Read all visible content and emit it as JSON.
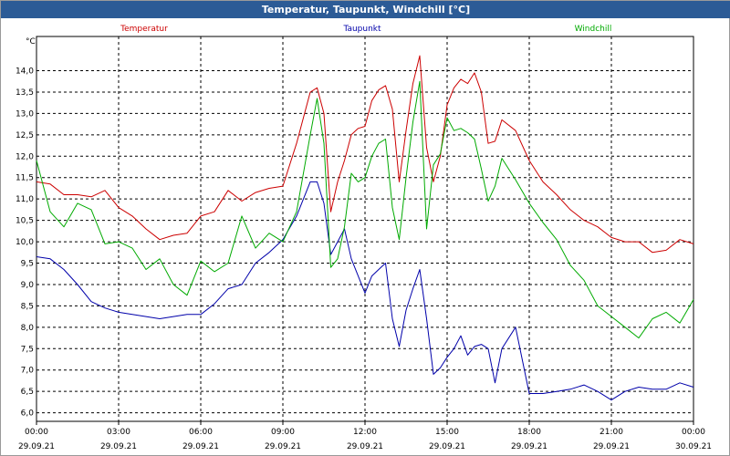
{
  "window": {
    "title": "Temperatur, Taupunkt, Windchill [°C]"
  },
  "colors": {
    "title_bar": "#2c5b96",
    "temperatur": "#cc0000",
    "taupunkt": "#0000aa",
    "windchill": "#00aa00",
    "grid": "#000000"
  },
  "chart_data": {
    "type": "line",
    "title": "Temperatur, Taupunkt, Windchill [°C]",
    "ylabel": "°C",
    "ylim": [
      5.8,
      14.8
    ],
    "yticks": [
      "6,0",
      "6,5",
      "7,0",
      "7,5",
      "8,0",
      "8,5",
      "9,0",
      "9,5",
      "10,0",
      "10,5",
      "11,0",
      "11,5",
      "12,0",
      "12,5",
      "13,0",
      "13,5",
      "14,0"
    ],
    "xlim": [
      0,
      24
    ],
    "xticks": [
      {
        "time": "00:00",
        "date": "29.09.21"
      },
      {
        "time": "03:00",
        "date": "29.09.21"
      },
      {
        "time": "06:00",
        "date": "29.09.21"
      },
      {
        "time": "09:00",
        "date": "29.09.21"
      },
      {
        "time": "12:00",
        "date": "29.09.21"
      },
      {
        "time": "15:00",
        "date": "29.09.21"
      },
      {
        "time": "18:00",
        "date": "29.09.21"
      },
      {
        "time": "21:00",
        "date": "29.09.21"
      },
      {
        "time": "00:00",
        "date": "30.09.21"
      }
    ],
    "grid": true,
    "legend_placement": "top",
    "x": [
      0,
      0.5,
      1,
      1.5,
      2,
      2.5,
      3,
      3.5,
      4,
      4.5,
      5,
      5.5,
      6,
      6.5,
      7,
      7.5,
      8,
      8.5,
      9,
      9.5,
      10,
      10.25,
      10.5,
      10.75,
      11,
      11.25,
      11.5,
      11.75,
      12,
      12.25,
      12.5,
      12.75,
      13,
      13.25,
      13.5,
      13.75,
      14,
      14.25,
      14.5,
      14.75,
      15,
      15.25,
      15.5,
      15.75,
      16,
      16.25,
      16.5,
      16.75,
      17,
      17.5,
      18,
      18.5,
      19,
      19.5,
      20,
      20.5,
      21,
      21.5,
      22,
      22.5,
      23,
      23.5,
      24
    ],
    "series": [
      {
        "name": "Temperatur",
        "color": "#cc0000",
        "values": [
          11.4,
          11.35,
          11.1,
          11.1,
          11.05,
          11.2,
          10.8,
          10.6,
          10.3,
          10.05,
          10.15,
          10.2,
          10.6,
          10.7,
          11.2,
          10.95,
          11.15,
          11.25,
          11.3,
          12.3,
          13.5,
          13.6,
          13.0,
          10.7,
          11.4,
          11.9,
          12.5,
          12.65,
          12.7,
          13.3,
          13.55,
          13.65,
          13.1,
          11.4,
          12.6,
          13.7,
          14.35,
          12.2,
          11.4,
          12.0,
          13.2,
          13.6,
          13.8,
          13.7,
          13.95,
          13.5,
          12.3,
          12.35,
          12.85,
          12.6,
          11.9,
          11.4,
          11.1,
          10.75,
          10.5,
          10.35,
          10.1,
          10.0,
          10.0,
          9.75,
          9.8,
          10.05,
          9.95
        ]
      },
      {
        "name": "Taupunkt",
        "color": "#0000aa",
        "values": [
          9.65,
          9.6,
          9.35,
          9.0,
          8.6,
          8.45,
          8.35,
          8.3,
          8.25,
          8.2,
          8.25,
          8.3,
          8.3,
          8.55,
          8.9,
          9.0,
          9.5,
          9.75,
          10.05,
          10.6,
          11.4,
          11.4,
          10.9,
          9.7,
          10.0,
          10.3,
          9.6,
          9.2,
          8.8,
          9.2,
          9.35,
          9.5,
          8.2,
          7.55,
          8.4,
          8.9,
          9.35,
          8.2,
          6.9,
          7.05,
          7.3,
          7.5,
          7.8,
          7.35,
          7.55,
          7.6,
          7.5,
          6.7,
          7.5,
          8.0,
          6.45,
          6.45,
          6.5,
          6.55,
          6.65,
          6.5,
          6.3,
          6.5,
          6.6,
          6.55,
          6.55,
          6.7,
          6.6
        ]
      },
      {
        "name": "Windchill",
        "color": "#00aa00",
        "values": [
          11.9,
          10.7,
          10.35,
          10.9,
          10.75,
          9.95,
          10.0,
          9.85,
          9.35,
          9.6,
          9.0,
          8.75,
          9.55,
          9.3,
          9.5,
          10.6,
          9.85,
          10.2,
          10.0,
          10.7,
          12.5,
          13.35,
          12.3,
          9.4,
          9.6,
          10.35,
          11.6,
          11.4,
          11.5,
          12.0,
          12.3,
          12.4,
          10.8,
          10.05,
          11.5,
          12.8,
          13.75,
          10.3,
          11.8,
          12.05,
          12.9,
          12.6,
          12.65,
          12.55,
          12.4,
          11.7,
          10.95,
          11.3,
          11.95,
          11.45,
          10.9,
          10.45,
          10.05,
          9.45,
          9.1,
          8.5,
          8.25,
          8.0,
          7.75,
          8.2,
          8.35,
          8.1,
          8.65
        ]
      }
    ]
  }
}
